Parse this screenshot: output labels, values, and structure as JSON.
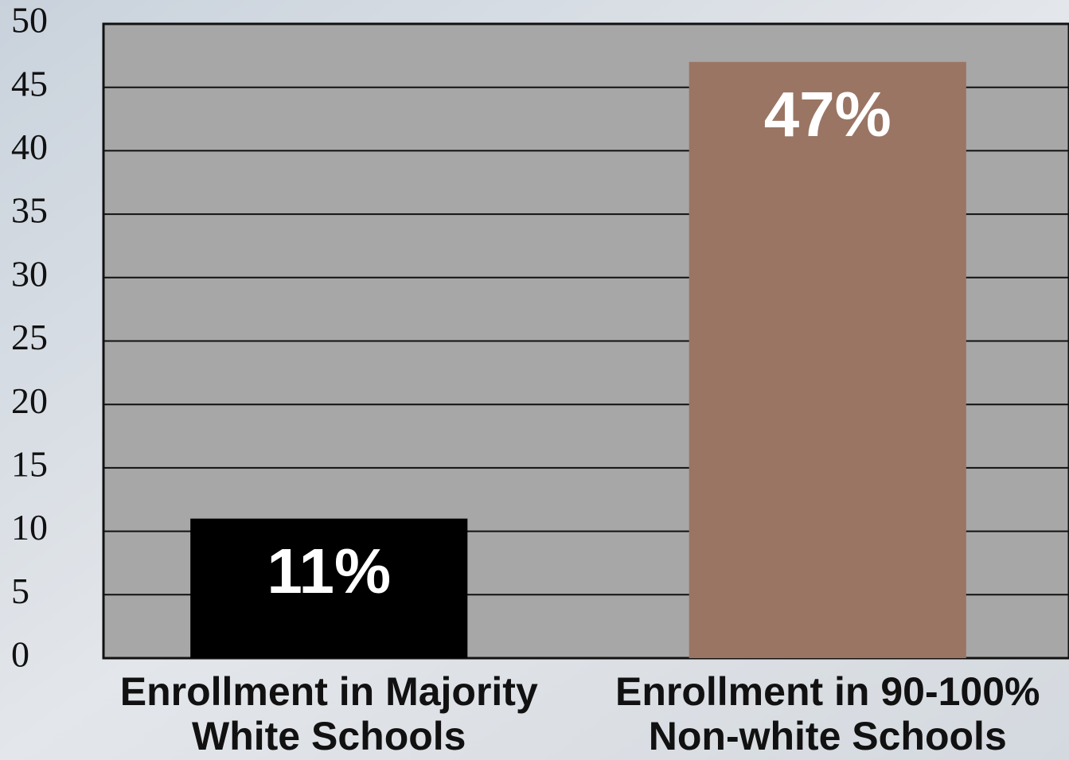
{
  "chart_data": {
    "type": "bar",
    "categories": [
      [
        "Enrollment in Majority",
        "White Schools"
      ],
      [
        "Enrollment in 90-100%",
        "Non-white Schools"
      ]
    ],
    "values": [
      11,
      47
    ],
    "value_labels": [
      "11%",
      "47%"
    ],
    "colors": [
      "#000000",
      "#9a7564"
    ],
    "ylim": [
      0,
      50
    ],
    "yticks": [
      0,
      5,
      10,
      15,
      20,
      25,
      30,
      35,
      40,
      45,
      50
    ],
    "grid": true
  }
}
